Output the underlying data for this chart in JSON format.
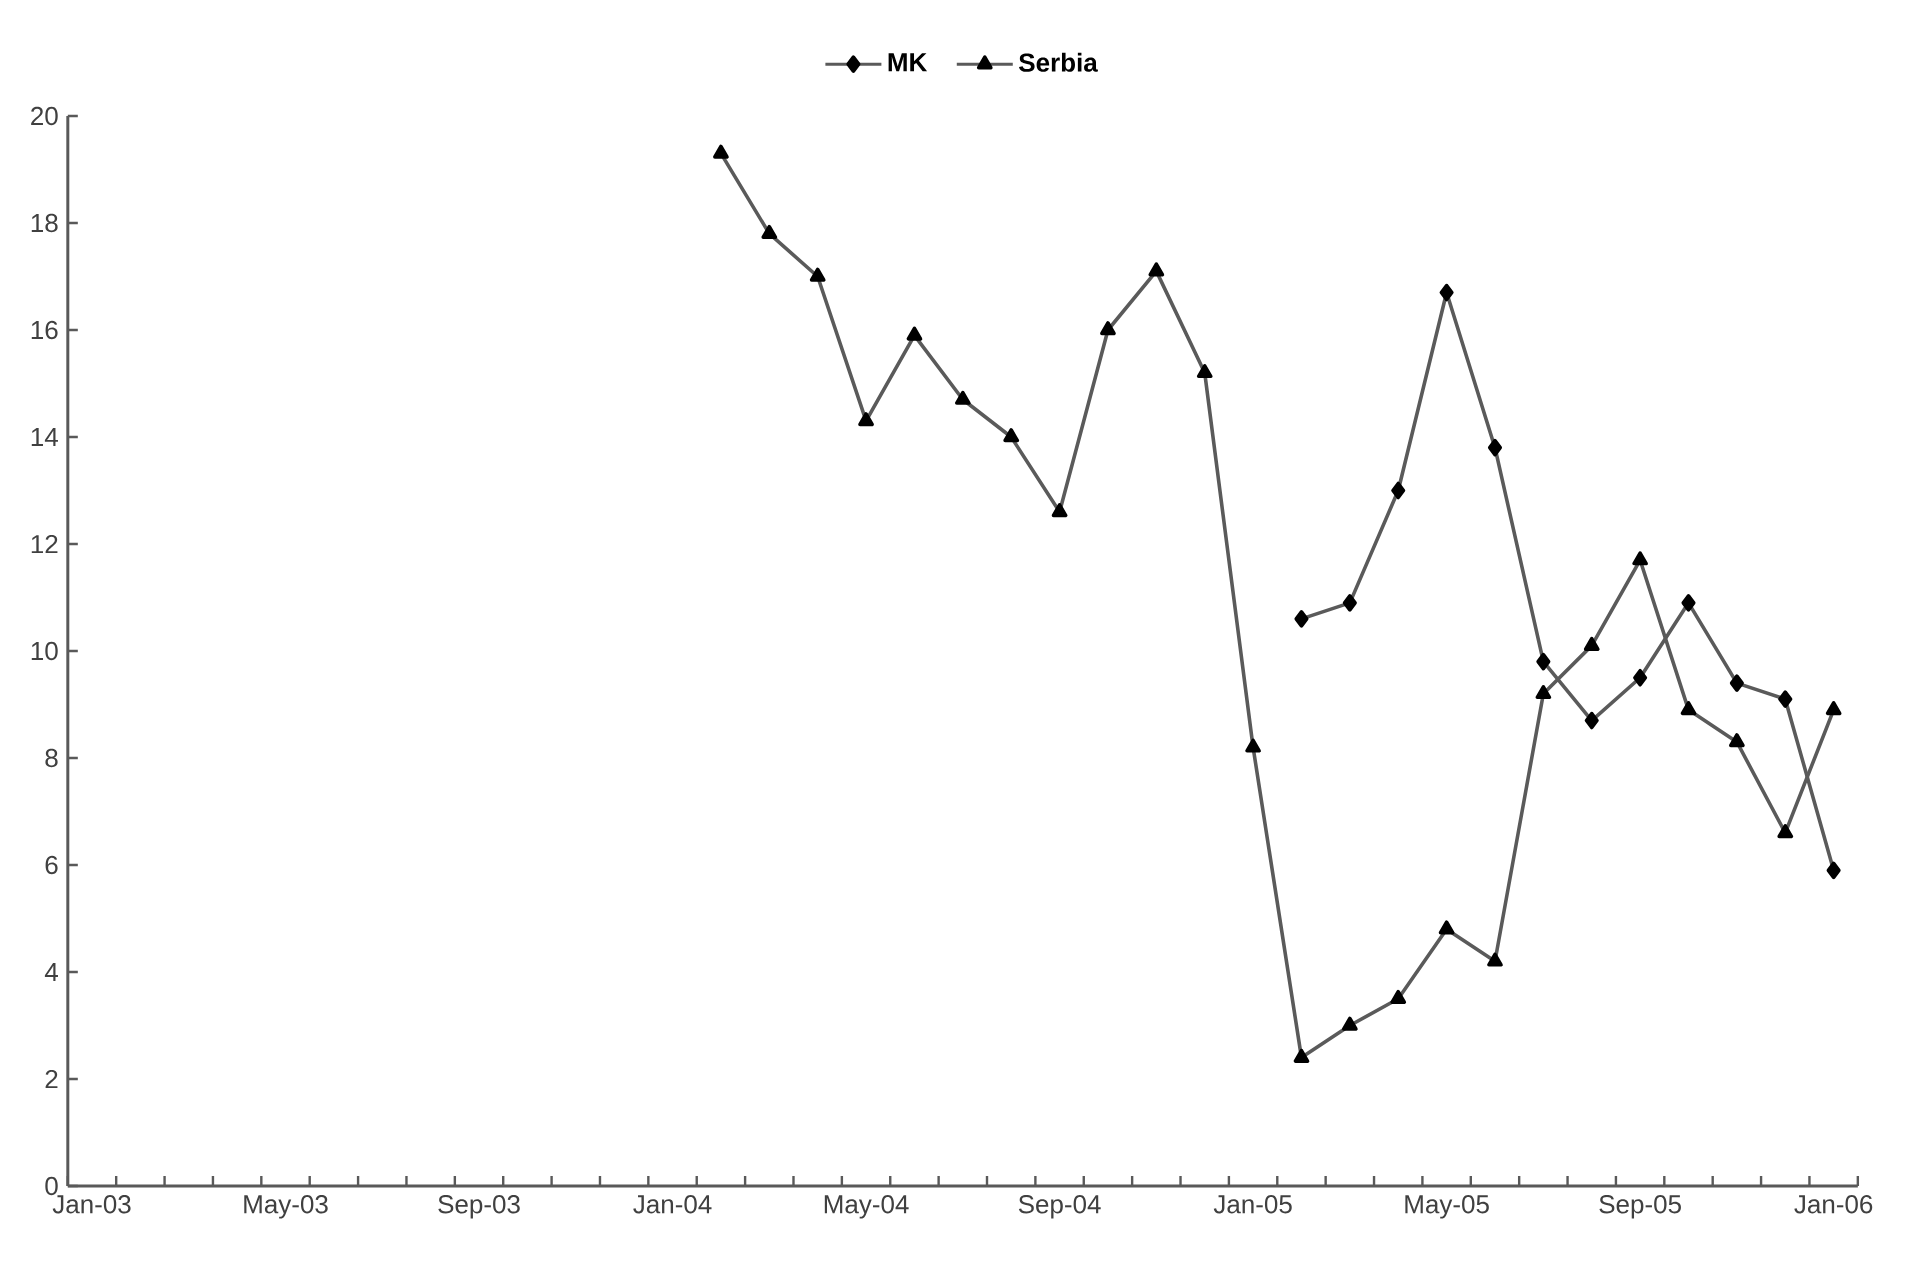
{
  "chart_data": {
    "type": "line",
    "categories": [
      "Jan-03",
      null,
      null,
      null,
      "May-03",
      null,
      null,
      null,
      "Sep-03",
      null,
      null,
      null,
      "Jan-04",
      null,
      null,
      null,
      "May-04",
      null,
      null,
      null,
      "Sep-04",
      null,
      null,
      null,
      "Jan-05",
      null,
      null,
      null,
      "May-05",
      null,
      null,
      null,
      "Sep-05",
      null,
      null,
      null,
      "Jan-06"
    ],
    "series": [
      {
        "name": "MK",
        "color": "#5a5a5a",
        "marker": "diamond",
        "values": [
          null,
          null,
          null,
          null,
          null,
          null,
          null,
          null,
          null,
          null,
          null,
          null,
          null,
          null,
          null,
          null,
          null,
          null,
          null,
          null,
          null,
          null,
          null,
          null,
          null,
          10.6,
          10.9,
          13.0,
          16.7,
          13.8,
          9.8,
          8.7,
          9.5,
          10.9,
          9.4,
          9.1,
          5.9
        ]
      },
      {
        "name": "Serbia",
        "color": "#5a5a5a",
        "marker": "triangle",
        "values": [
          null,
          null,
          null,
          null,
          null,
          null,
          null,
          null,
          null,
          null,
          null,
          null,
          null,
          19.3,
          17.8,
          17.0,
          14.3,
          15.9,
          14.7,
          14.0,
          12.6,
          16.0,
          17.1,
          15.2,
          8.2,
          2.4,
          3.0,
          3.5,
          4.8,
          4.2,
          9.2,
          10.1,
          11.7,
          8.9,
          8.3,
          6.6,
          8.9
        ]
      }
    ],
    "ylim": [
      0,
      20
    ],
    "yticks": [
      0,
      2,
      4,
      6,
      8,
      10,
      12,
      14,
      16,
      18,
      20
    ],
    "legend": "top",
    "grid": false,
    "line_style": "solid"
  }
}
